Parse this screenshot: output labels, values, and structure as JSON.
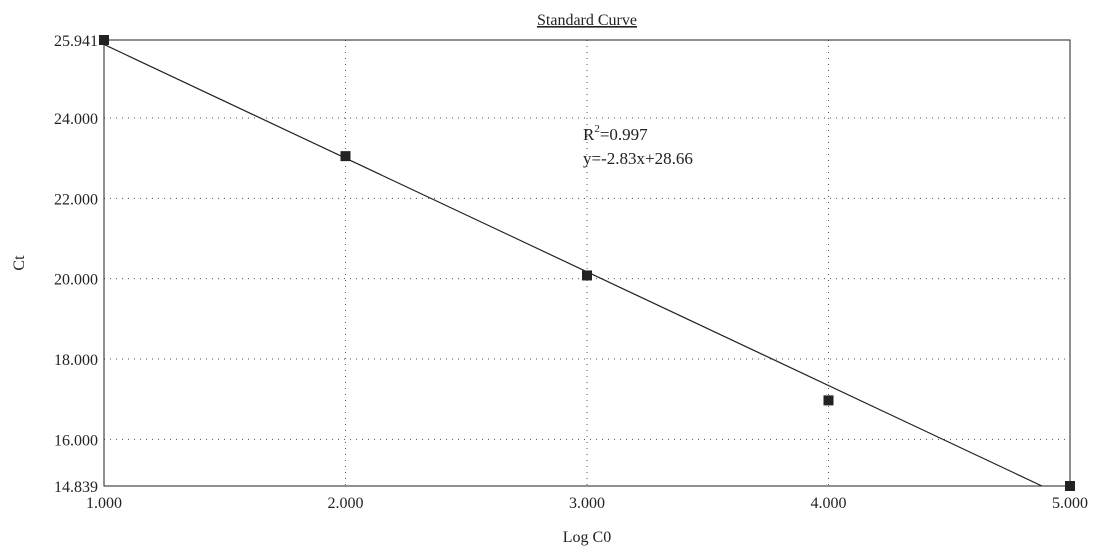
{
  "chart_data": {
    "type": "scatter",
    "title": "Standard Curve",
    "xlabel": "Log C0",
    "ylabel": "Ct",
    "xlim": [
      1.0,
      5.0
    ],
    "ylim": [
      14.839,
      25.941
    ],
    "x_ticks": [
      1.0,
      2.0,
      3.0,
      4.0,
      5.0
    ],
    "x_tick_labels": [
      "1.000",
      "2.000",
      "3.000",
      "4.000",
      "5.000"
    ],
    "y_ticks": [
      14.839,
      16.0,
      18.0,
      20.0,
      22.0,
      24.0,
      25.941
    ],
    "y_tick_labels": [
      "14.839",
      "16.000",
      "18.000",
      "20.000",
      "22.000",
      "24.000",
      "25.941"
    ],
    "grid": true,
    "series": [
      {
        "x": [
          1.0,
          2.0,
          3.0,
          4.0,
          5.0
        ],
        "y": [
          25.941,
          23.05,
          20.08,
          16.97,
          14.839
        ],
        "marker": "square",
        "color": "#222222"
      }
    ],
    "fit_line": {
      "slope": -2.83,
      "intercept": 28.66,
      "color": "#222222"
    },
    "annotations": {
      "r2_prefix": "R",
      "r2_sup": "2",
      "r2_value": "=0.997",
      "equation": "y=-2.83x+28.66"
    }
  }
}
